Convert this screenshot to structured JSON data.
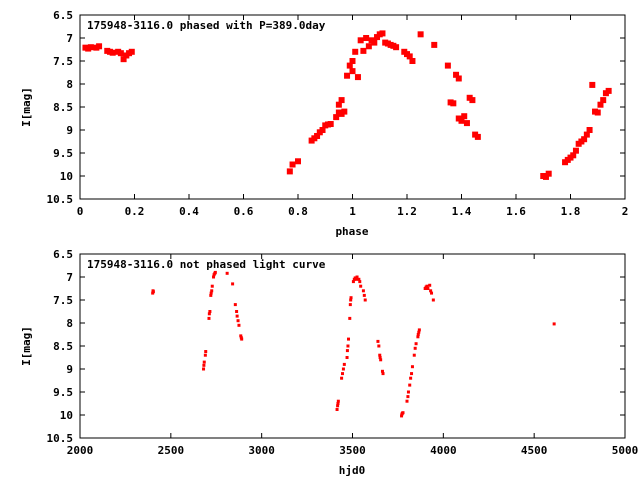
{
  "chart_data": [
    {
      "type": "scatter",
      "title": "175948-3116.0 phased with P=389.0day",
      "xlabel": "phase",
      "ylabel": "I[mag]",
      "xlim": [
        0,
        2
      ],
      "ylim": [
        10.5,
        6.5
      ],
      "y_inverted": true,
      "grid": false,
      "xticks": [
        "0",
        "0.2",
        "0.4",
        "0.6",
        "0.8",
        "1",
        "1.2",
        "1.4",
        "1.6",
        "1.8",
        "2"
      ],
      "yticks": [
        "6.5",
        "7",
        "7.5",
        "8",
        "8.5",
        "9",
        "9.5",
        "10",
        "10.5"
      ],
      "marker_color": "#ff0000",
      "marker": "filled-square-large",
      "series": [
        {
          "points": [
            [
              0.02,
              7.21
            ],
            [
              0.03,
              7.23
            ],
            [
              0.04,
              7.2
            ],
            [
              0.06,
              7.21
            ],
            [
              0.07,
              7.18
            ],
            [
              0.1,
              7.28
            ],
            [
              0.11,
              7.3
            ],
            [
              0.12,
              7.32
            ],
            [
              0.14,
              7.3
            ],
            [
              0.15,
              7.33
            ],
            [
              0.16,
              7.46
            ],
            [
              0.17,
              7.38
            ],
            [
              0.18,
              7.33
            ],
            [
              0.19,
              7.3
            ],
            [
              0.77,
              9.9
            ],
            [
              0.78,
              9.75
            ],
            [
              0.8,
              9.68
            ],
            [
              0.85,
              9.23
            ],
            [
              0.86,
              9.18
            ],
            [
              0.87,
              9.13
            ],
            [
              0.88,
              9.05
            ],
            [
              0.89,
              9.0
            ],
            [
              0.9,
              8.9
            ],
            [
              0.91,
              8.88
            ],
            [
              0.92,
              8.87
            ],
            [
              0.94,
              8.72
            ],
            [
              0.95,
              8.62
            ],
            [
              0.95,
              8.45
            ],
            [
              0.96,
              8.35
            ],
            [
              0.96,
              8.65
            ],
            [
              0.97,
              8.6
            ],
            [
              0.98,
              7.82
            ],
            [
              0.99,
              7.6
            ],
            [
              1.0,
              7.72
            ],
            [
              1.0,
              7.5
            ],
            [
              1.01,
              7.3
            ],
            [
              1.02,
              7.85
            ],
            [
              1.03,
              7.05
            ],
            [
              1.04,
              7.28
            ],
            [
              1.05,
              7.0
            ],
            [
              1.06,
              7.18
            ],
            [
              1.07,
              7.05
            ],
            [
              1.08,
              7.1
            ],
            [
              1.09,
              6.98
            ],
            [
              1.1,
              6.92
            ],
            [
              1.11,
              6.9
            ],
            [
              1.12,
              7.1
            ],
            [
              1.13,
              7.12
            ],
            [
              1.14,
              7.15
            ],
            [
              1.15,
              7.17
            ],
            [
              1.16,
              7.2
            ],
            [
              1.19,
              7.3
            ],
            [
              1.2,
              7.35
            ],
            [
              1.21,
              7.4
            ],
            [
              1.22,
              7.5
            ],
            [
              1.25,
              6.92
            ],
            [
              1.3,
              7.15
            ],
            [
              1.35,
              7.6
            ],
            [
              1.36,
              8.4
            ],
            [
              1.37,
              8.42
            ],
            [
              1.38,
              7.8
            ],
            [
              1.39,
              7.88
            ],
            [
              1.39,
              8.75
            ],
            [
              1.4,
              8.8
            ],
            [
              1.41,
              8.7
            ],
            [
              1.42,
              8.85
            ],
            [
              1.43,
              8.3
            ],
            [
              1.44,
              8.35
            ],
            [
              1.45,
              9.1
            ],
            [
              1.46,
              9.15
            ],
            [
              1.7,
              10.0
            ],
            [
              1.71,
              10.02
            ],
            [
              1.72,
              9.95
            ],
            [
              1.78,
              9.7
            ],
            [
              1.79,
              9.65
            ],
            [
              1.8,
              9.6
            ],
            [
              1.81,
              9.55
            ],
            [
              1.82,
              9.45
            ],
            [
              1.83,
              9.3
            ],
            [
              1.84,
              9.25
            ],
            [
              1.85,
              9.2
            ],
            [
              1.86,
              9.1
            ],
            [
              1.87,
              9.0
            ],
            [
              1.88,
              8.02
            ],
            [
              1.89,
              8.6
            ],
            [
              1.9,
              8.62
            ],
            [
              1.91,
              8.45
            ],
            [
              1.92,
              8.35
            ],
            [
              1.93,
              8.2
            ],
            [
              1.94,
              8.15
            ]
          ]
        }
      ]
    },
    {
      "type": "scatter",
      "title": "175948-3116.0 not phased light curve",
      "xlabel": "hjd0",
      "ylabel": "I[mag]",
      "xlim": [
        2000,
        5000
      ],
      "ylim": [
        10.5,
        6.5
      ],
      "y_inverted": true,
      "grid": false,
      "xticks": [
        "2000",
        "2500",
        "3000",
        "3500",
        "4000",
        "4500",
        "5000"
      ],
      "yticks": [
        "6.5",
        "7",
        "7.5",
        "8",
        "8.5",
        "9",
        "9.5",
        "10",
        "10.5"
      ],
      "marker_color": "#ff0000",
      "marker": "filled-square-small",
      "series": [
        {
          "points": [
            [
              2400,
              7.35
            ],
            [
              2402,
              7.3
            ],
            [
              2404,
              7.32
            ],
            [
              2680,
              9.0
            ],
            [
              2682,
              8.92
            ],
            [
              2684,
              8.85
            ],
            [
              2690,
              8.7
            ],
            [
              2692,
              8.62
            ],
            [
              2710,
              7.9
            ],
            [
              2712,
              7.8
            ],
            [
              2715,
              7.75
            ],
            [
              2720,
              7.4
            ],
            [
              2722,
              7.35
            ],
            [
              2725,
              7.3
            ],
            [
              2728,
              7.2
            ],
            [
              2735,
              7.0
            ],
            [
              2738,
              6.95
            ],
            [
              2742,
              6.92
            ],
            [
              2745,
              6.9
            ],
            [
              2810,
              6.92
            ],
            [
              2840,
              7.15
            ],
            [
              2855,
              7.6
            ],
            [
              2862,
              7.75
            ],
            [
              2865,
              7.85
            ],
            [
              2870,
              7.95
            ],
            [
              2875,
              8.05
            ],
            [
              2885,
              8.28
            ],
            [
              2888,
              8.32
            ],
            [
              2890,
              8.35
            ],
            [
              3415,
              9.88
            ],
            [
              3418,
              9.8
            ],
            [
              3420,
              9.75
            ],
            [
              3422,
              9.7
            ],
            [
              3440,
              9.2
            ],
            [
              3445,
              9.1
            ],
            [
              3450,
              9.0
            ],
            [
              3455,
              8.9
            ],
            [
              3470,
              8.75
            ],
            [
              3472,
              8.6
            ],
            [
              3475,
              8.5
            ],
            [
              3478,
              8.35
            ],
            [
              3485,
              7.9
            ],
            [
              3488,
              7.6
            ],
            [
              3490,
              7.5
            ],
            [
              3492,
              7.45
            ],
            [
              3505,
              7.1
            ],
            [
              3510,
              7.05
            ],
            [
              3515,
              7.02
            ],
            [
              3520,
              7.05
            ],
            [
              3525,
              7.0
            ],
            [
              3535,
              7.05
            ],
            [
              3540,
              7.1
            ],
            [
              3545,
              7.2
            ],
            [
              3560,
              7.3
            ],
            [
              3565,
              7.4
            ],
            [
              3570,
              7.5
            ],
            [
              3640,
              8.4
            ],
            [
              3645,
              8.5
            ],
            [
              3650,
              8.7
            ],
            [
              3652,
              8.75
            ],
            [
              3655,
              8.8
            ],
            [
              3665,
              9.05
            ],
            [
              3668,
              9.1
            ],
            [
              3770,
              10.02
            ],
            [
              3772,
              9.98
            ],
            [
              3775,
              9.96
            ],
            [
              3778,
              9.95
            ],
            [
              3800,
              9.7
            ],
            [
              3805,
              9.6
            ],
            [
              3808,
              9.5
            ],
            [
              3815,
              9.35
            ],
            [
              3820,
              9.2
            ],
            [
              3825,
              9.1
            ],
            [
              3830,
              8.95
            ],
            [
              3840,
              8.7
            ],
            [
              3845,
              8.55
            ],
            [
              3850,
              8.45
            ],
            [
              3860,
              8.3
            ],
            [
              3862,
              8.25
            ],
            [
              3865,
              8.2
            ],
            [
              3868,
              8.15
            ],
            [
              3900,
              7.25
            ],
            [
              3905,
              7.22
            ],
            [
              3910,
              7.2
            ],
            [
              3915,
              7.25
            ],
            [
              3925,
              7.18
            ],
            [
              3930,
              7.3
            ],
            [
              3935,
              7.35
            ],
            [
              3945,
              7.5
            ],
            [
              4610,
              8.02
            ]
          ]
        }
      ]
    }
  ]
}
